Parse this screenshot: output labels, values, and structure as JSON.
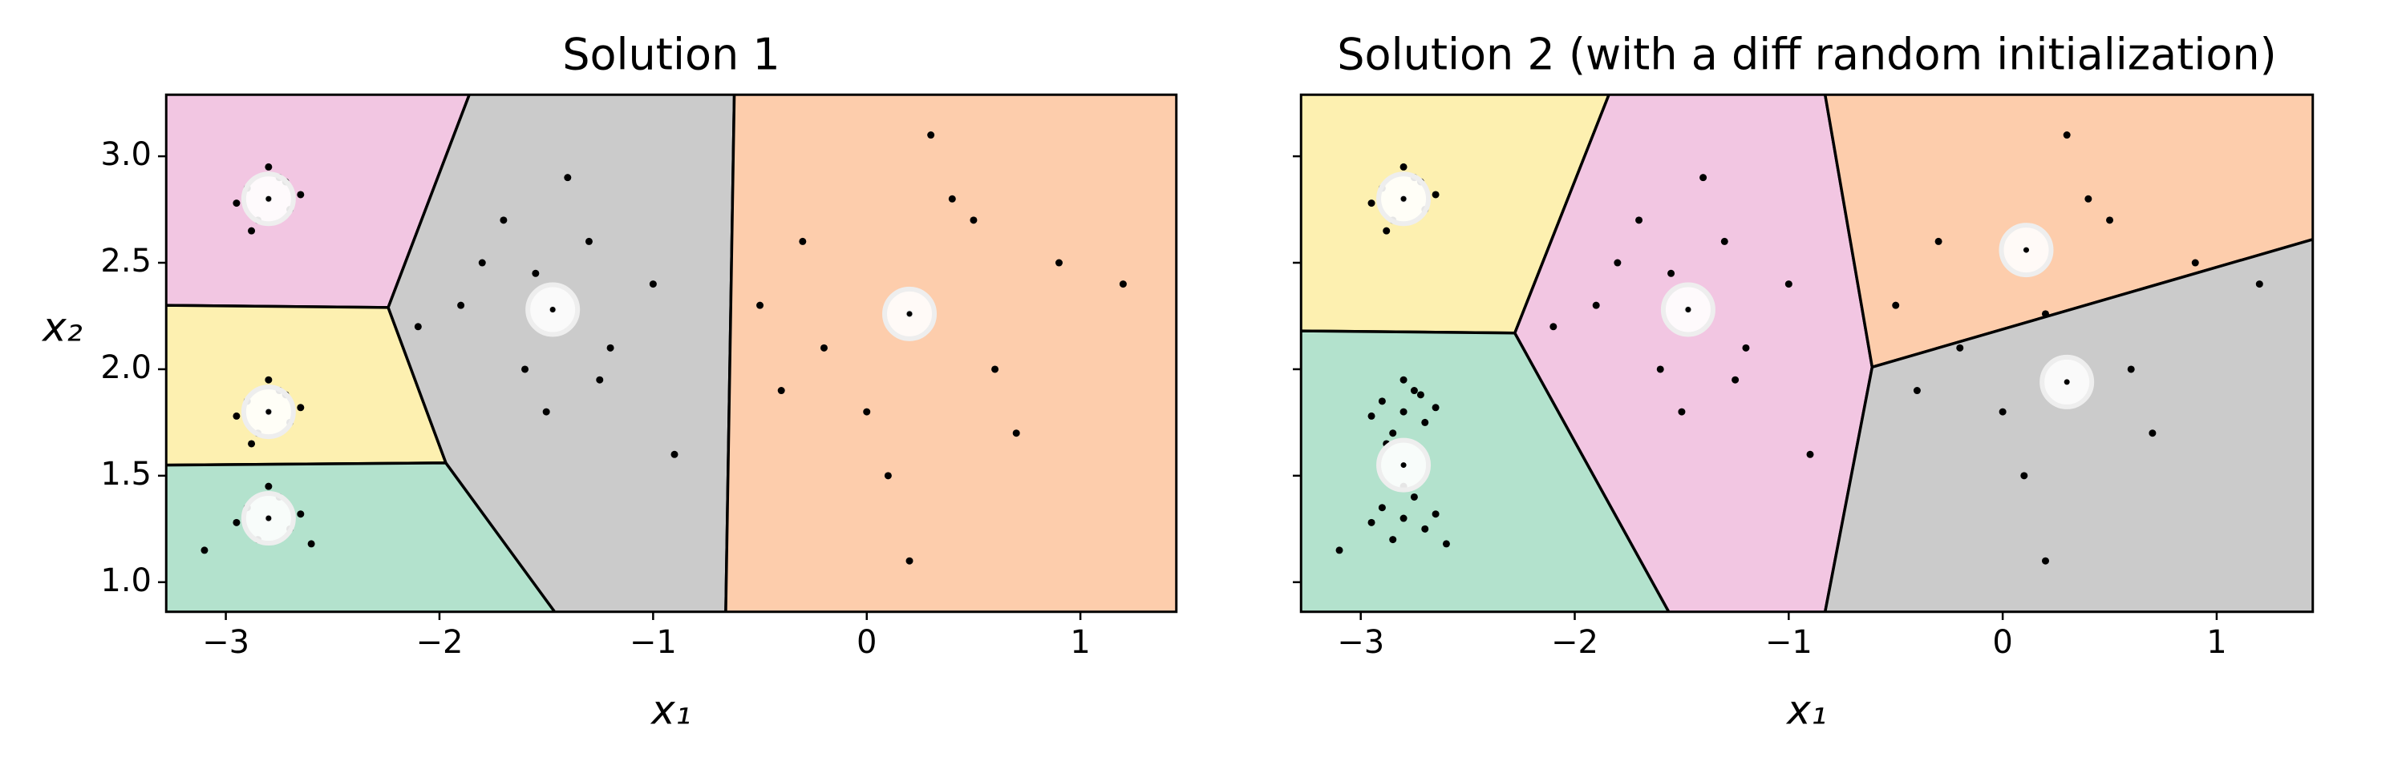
{
  "chart_data": [
    {
      "type": "scatter",
      "title": "Solution 1",
      "xlabel": "x₁",
      "ylabel": "x₂",
      "xlim": [
        -3.28,
        1.45
      ],
      "ylim": [
        0.86,
        3.29
      ],
      "xticks": [
        {
          "value": -3,
          "label": "−3"
        },
        {
          "value": -2,
          "label": "−2"
        },
        {
          "value": -1,
          "label": "−1"
        },
        0,
        1
      ],
      "yticks": [
        {
          "value": 1,
          "label": "1.0"
        },
        1.5,
        {
          "value": 2,
          "label": "2.0"
        },
        2.5,
        {
          "value": 3,
          "label": "3.0"
        }
      ],
      "show_ytick_labels": true,
      "regions": [
        {
          "color": "#f2c6e2",
          "points": [
            [
              -3.28,
              3.29
            ],
            [
              -1.86,
              3.29
            ],
            [
              -2.24,
              2.29
            ],
            [
              -3.28,
              2.3
            ]
          ]
        },
        {
          "color": "#fdf0b0",
          "points": [
            [
              -3.28,
              2.3
            ],
            [
              -2.24,
              2.29
            ],
            [
              -1.97,
              1.56
            ],
            [
              -3.28,
              1.55
            ]
          ]
        },
        {
          "color": "#b3e2cd",
          "points": [
            [
              -3.28,
              1.55
            ],
            [
              -1.97,
              1.56
            ],
            [
              -1.46,
              0.86
            ],
            [
              -3.28,
              0.86
            ]
          ]
        },
        {
          "color": "#cbcbcb",
          "points": [
            [
              -1.86,
              3.29
            ],
            [
              -0.62,
              3.29
            ],
            [
              -0.66,
              0.86
            ],
            [
              -1.46,
              0.86
            ],
            [
              -1.97,
              1.56
            ],
            [
              -2.24,
              2.29
            ]
          ]
        },
        {
          "color": "#fdcdac",
          "points": [
            [
              -0.62,
              3.29
            ],
            [
              1.45,
              3.29
            ],
            [
              1.45,
              0.86
            ],
            [
              -0.66,
              0.86
            ]
          ]
        }
      ],
      "color": "#000000",
      "x": [
        -2.8,
        -2.9,
        -2.7,
        -2.85,
        -2.75,
        -2.95,
        -2.65,
        -2.8,
        -2.88,
        -2.72,
        -2.8,
        -2.9,
        -2.7,
        -2.85,
        -2.75,
        -2.95,
        -2.65,
        -2.8,
        -2.88,
        -2.72,
        -2.8,
        -2.9,
        -2.7,
        -2.85,
        -2.75,
        -2.95,
        -2.65,
        -2.8,
        -3.1,
        -2.6,
        -1.47,
        -1.8,
        -1.2,
        -1.6,
        -1.3,
        -1.9,
        -1.0,
        -1.5,
        -1.7,
        -1.25,
        -1.4,
        -2.1,
        -0.9,
        -1.55,
        0.2,
        -0.3,
        0.6,
        0.0,
        0.4,
        -0.5,
        0.9,
        0.1,
        0.3,
        -0.2,
        0.7,
        1.2,
        -0.4,
        0.5,
        0.2
      ],
      "y": [
        2.8,
        2.85,
        2.75,
        2.7,
        2.9,
        2.78,
        2.82,
        2.95,
        2.65,
        2.88,
        1.8,
        1.85,
        1.75,
        1.7,
        1.9,
        1.78,
        1.82,
        1.95,
        1.65,
        1.88,
        1.3,
        1.35,
        1.25,
        1.2,
        1.4,
        1.28,
        1.32,
        1.45,
        1.15,
        1.18,
        2.28,
        2.5,
        2.1,
        2.0,
        2.6,
        2.3,
        2.4,
        1.8,
        2.7,
        1.95,
        2.9,
        2.2,
        1.6,
        2.45,
        2.26,
        2.6,
        2.0,
        1.8,
        2.8,
        2.3,
        2.5,
        1.5,
        3.1,
        2.1,
        1.7,
        2.4,
        1.9,
        2.7,
        1.1
      ],
      "centroids": {
        "x": [
          -2.8,
          -2.8,
          -2.8,
          -1.47,
          0.2
        ],
        "y": [
          2.8,
          1.8,
          1.3,
          2.28,
          2.26
        ]
      }
    },
    {
      "type": "scatter",
      "title": "Solution 2 (with a diff random initialization)",
      "xlabel": "x₁",
      "xlim": [
        -3.28,
        1.45
      ],
      "ylim": [
        0.86,
        3.29
      ],
      "xticks": [
        {
          "value": -3,
          "label": "−3"
        },
        {
          "value": -2,
          "label": "−2"
        },
        {
          "value": -1,
          "label": "−1"
        },
        0,
        1
      ],
      "yticks": [
        1,
        1.5,
        2,
        2.5,
        3
      ],
      "show_ytick_labels": false,
      "regions": [
        {
          "color": "#fdf0b0",
          "points": [
            [
              -3.28,
              3.29
            ],
            [
              -1.84,
              3.29
            ],
            [
              -2.28,
              2.17
            ],
            [
              -3.28,
              2.18
            ]
          ]
        },
        {
          "color": "#b3e2cd",
          "points": [
            [
              -3.28,
              2.18
            ],
            [
              -2.28,
              2.17
            ],
            [
              -1.56,
              0.86
            ],
            [
              -3.28,
              0.86
            ]
          ]
        },
        {
          "color": "#f2c6e2",
          "points": [
            [
              -1.84,
              3.29
            ],
            [
              -0.83,
              3.29
            ],
            [
              -0.61,
              2.01
            ],
            [
              -0.83,
              0.86
            ],
            [
              -1.56,
              0.86
            ],
            [
              -2.28,
              2.17
            ]
          ]
        },
        {
          "color": "#fdcdac",
          "points": [
            [
              -0.83,
              3.29
            ],
            [
              1.45,
              3.29
            ],
            [
              1.45,
              2.61
            ],
            [
              -0.61,
              2.01
            ]
          ]
        },
        {
          "color": "#cbcbcb",
          "points": [
            [
              -0.61,
              2.01
            ],
            [
              1.45,
              2.61
            ],
            [
              1.45,
              0.86
            ],
            [
              -0.83,
              0.86
            ]
          ]
        }
      ],
      "color": "#000000",
      "x": [
        -2.8,
        -2.9,
        -2.7,
        -2.85,
        -2.75,
        -2.95,
        -2.65,
        -2.8,
        -2.88,
        -2.72,
        -2.8,
        -2.9,
        -2.7,
        -2.85,
        -2.75,
        -2.95,
        -2.65,
        -2.8,
        -2.88,
        -2.72,
        -2.8,
        -2.9,
        -2.7,
        -2.85,
        -2.75,
        -2.95,
        -2.65,
        -2.8,
        -3.1,
        -2.6,
        -1.47,
        -1.8,
        -1.2,
        -1.6,
        -1.3,
        -1.9,
        -1.0,
        -1.5,
        -1.7,
        -1.25,
        -1.4,
        -2.1,
        -0.9,
        -1.55,
        0.2,
        -0.3,
        0.6,
        0.0,
        0.4,
        -0.5,
        0.9,
        0.1,
        0.3,
        -0.2,
        0.7,
        1.2,
        -0.4,
        0.5,
        0.2
      ],
      "y": [
        2.8,
        2.85,
        2.75,
        2.7,
        2.9,
        2.78,
        2.82,
        2.95,
        2.65,
        2.88,
        1.8,
        1.85,
        1.75,
        1.7,
        1.9,
        1.78,
        1.82,
        1.95,
        1.65,
        1.88,
        1.3,
        1.35,
        1.25,
        1.2,
        1.4,
        1.28,
        1.32,
        1.45,
        1.15,
        1.18,
        2.28,
        2.5,
        2.1,
        2.0,
        2.6,
        2.3,
        2.4,
        1.8,
        2.7,
        1.95,
        2.9,
        2.2,
        1.6,
        2.45,
        2.26,
        2.6,
        2.0,
        1.8,
        2.8,
        2.3,
        2.5,
        1.5,
        3.1,
        2.1,
        1.7,
        2.4,
        1.9,
        2.7,
        1.1
      ],
      "centroids": {
        "x": [
          -2.8,
          -2.8,
          -1.47,
          0.11,
          0.3
        ],
        "y": [
          2.8,
          1.55,
          2.28,
          2.56,
          1.94
        ]
      }
    }
  ]
}
